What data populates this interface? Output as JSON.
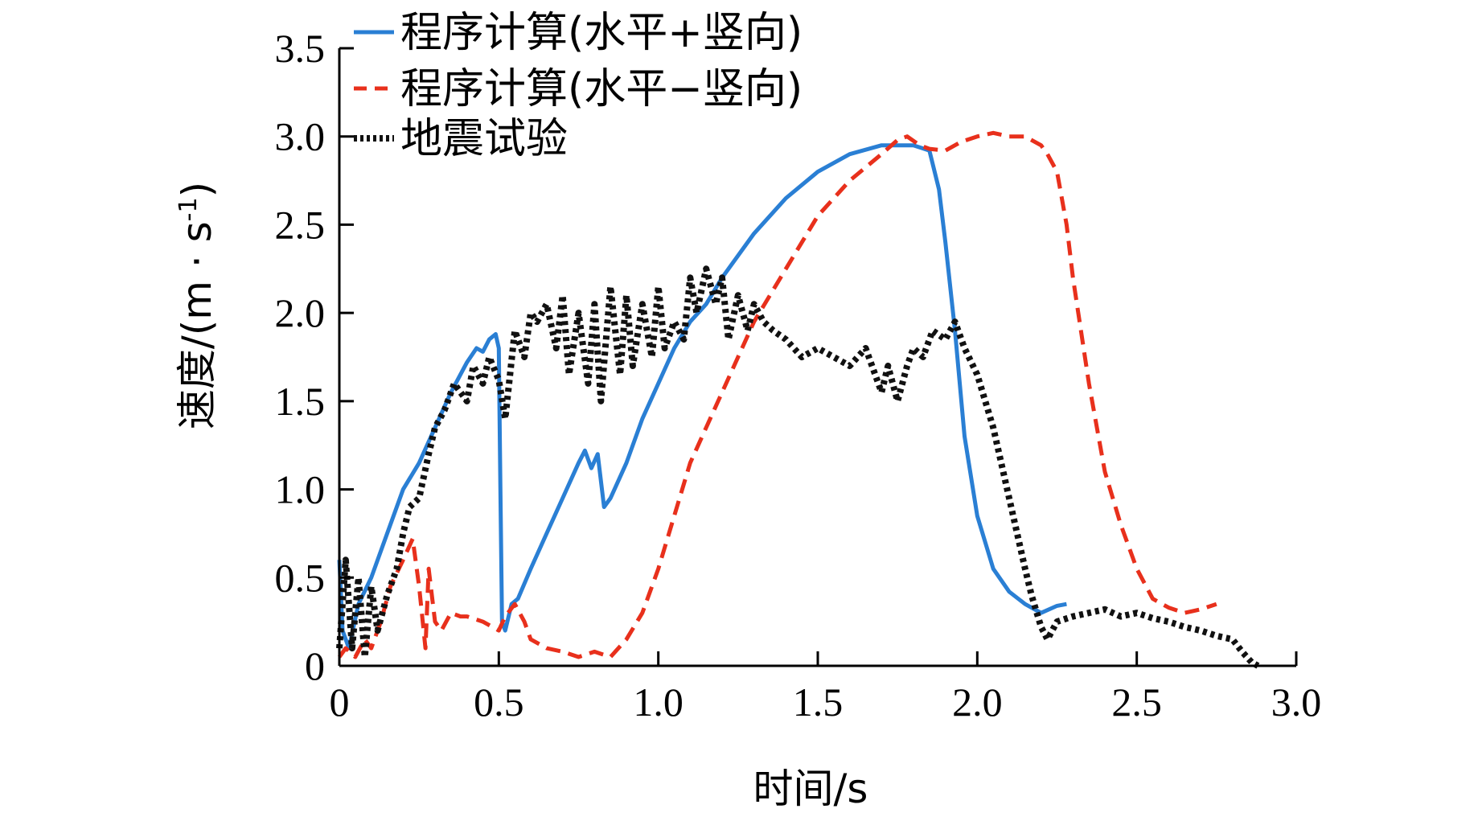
{
  "chart_data": {
    "type": "line",
    "xlabel": "时间/s",
    "ylabel": "速度/(m · s",
    "ylabel_superscript": "-1",
    "ylabel_suffix": ")",
    "xlim": [
      0,
      3.0
    ],
    "ylim": [
      0,
      3.5
    ],
    "xticks": [
      0,
      0.5,
      1.0,
      1.5,
      2.0,
      2.5,
      3.0
    ],
    "xtick_labels": [
      "0",
      "0.5",
      "1.0",
      "1.5",
      "2.0",
      "2.5",
      "3.0"
    ],
    "yticks": [
      0,
      0.5,
      1.0,
      1.5,
      2.0,
      2.5,
      3.0,
      3.5
    ],
    "ytick_labels": [
      "0",
      "0.5",
      "1.0",
      "1.5",
      "2.0",
      "2.5",
      "3.0",
      "3.5"
    ],
    "legend_position": "top-left",
    "series": [
      {
        "name": "程序计算(水平+竖向)",
        "color": "#2a7fd4",
        "style": "solid",
        "x": [
          0,
          0.01,
          0.03,
          0.06,
          0.1,
          0.15,
          0.2,
          0.25,
          0.3,
          0.35,
          0.4,
          0.43,
          0.45,
          0.47,
          0.49,
          0.5,
          0.505,
          0.51,
          0.52,
          0.54,
          0.56,
          0.6,
          0.65,
          0.7,
          0.75,
          0.77,
          0.79,
          0.81,
          0.83,
          0.85,
          0.9,
          0.95,
          1.0,
          1.05,
          1.1,
          1.15,
          1.2,
          1.3,
          1.4,
          1.5,
          1.6,
          1.7,
          1.8,
          1.85,
          1.88,
          1.9,
          1.93,
          1.96,
          2.0,
          2.05,
          2.1,
          2.15,
          2.18,
          2.2,
          2.25,
          2.28
        ],
        "y": [
          0.6,
          0.2,
          0.1,
          0.35,
          0.5,
          0.75,
          1.0,
          1.15,
          1.35,
          1.55,
          1.72,
          1.8,
          1.78,
          1.85,
          1.88,
          1.8,
          1.0,
          0.25,
          0.2,
          0.35,
          0.38,
          0.55,
          0.75,
          0.95,
          1.15,
          1.22,
          1.12,
          1.2,
          0.9,
          0.95,
          1.15,
          1.4,
          1.6,
          1.8,
          1.95,
          2.05,
          2.2,
          2.45,
          2.65,
          2.8,
          2.9,
          2.95,
          2.95,
          2.92,
          2.7,
          2.4,
          1.9,
          1.3,
          0.85,
          0.55,
          0.42,
          0.35,
          0.32,
          0.3,
          0.34,
          0.35
        ]
      },
      {
        "name": "程序计算(水平−竖向)",
        "color": "#e8301c",
        "style": "dashed",
        "x": [
          0,
          0.02,
          0.05,
          0.08,
          0.1,
          0.13,
          0.16,
          0.2,
          0.23,
          0.25,
          0.27,
          0.28,
          0.3,
          0.32,
          0.35,
          0.38,
          0.4,
          0.45,
          0.5,
          0.52,
          0.55,
          0.58,
          0.6,
          0.65,
          0.7,
          0.75,
          0.8,
          0.85,
          0.9,
          0.95,
          1.0,
          1.05,
          1.1,
          1.2,
          1.3,
          1.4,
          1.5,
          1.6,
          1.7,
          1.75,
          1.78,
          1.82,
          1.85,
          1.9,
          1.95,
          2.0,
          2.05,
          2.1,
          2.15,
          2.2,
          2.22,
          2.25,
          2.28,
          2.3,
          2.35,
          2.4,
          2.45,
          2.5,
          2.55,
          2.6,
          2.65,
          2.7,
          2.75
        ],
        "y": [
          0.05,
          0.1,
          0.05,
          0.15,
          0.1,
          0.25,
          0.45,
          0.6,
          0.72,
          0.45,
          0.1,
          0.55,
          0.25,
          0.2,
          0.3,
          0.28,
          0.28,
          0.25,
          0.2,
          0.28,
          0.35,
          0.25,
          0.15,
          0.1,
          0.08,
          0.05,
          0.08,
          0.05,
          0.15,
          0.3,
          0.55,
          0.85,
          1.15,
          1.55,
          1.95,
          2.25,
          2.55,
          2.75,
          2.9,
          2.98,
          3.0,
          2.95,
          2.93,
          2.92,
          2.97,
          3.0,
          3.02,
          3.0,
          3.0,
          2.95,
          2.9,
          2.8,
          2.5,
          2.2,
          1.6,
          1.1,
          0.8,
          0.55,
          0.38,
          0.33,
          0.3,
          0.32,
          0.35
        ]
      },
      {
        "name": "地震试验",
        "color": "#111111",
        "style": "dotted",
        "x": [
          0,
          0.02,
          0.04,
          0.06,
          0.08,
          0.1,
          0.12,
          0.15,
          0.18,
          0.2,
          0.22,
          0.25,
          0.28,
          0.3,
          0.33,
          0.36,
          0.4,
          0.42,
          0.45,
          0.47,
          0.5,
          0.52,
          0.55,
          0.58,
          0.6,
          0.62,
          0.65,
          0.68,
          0.7,
          0.72,
          0.75,
          0.78,
          0.8,
          0.82,
          0.85,
          0.88,
          0.9,
          0.92,
          0.95,
          0.98,
          1.0,
          1.02,
          1.05,
          1.08,
          1.1,
          1.12,
          1.15,
          1.18,
          1.2,
          1.22,
          1.25,
          1.28,
          1.3,
          1.33,
          1.36,
          1.4,
          1.45,
          1.5,
          1.55,
          1.6,
          1.65,
          1.7,
          1.72,
          1.75,
          1.78,
          1.8,
          1.83,
          1.86,
          1.9,
          1.93,
          1.96,
          2.0,
          2.05,
          2.1,
          2.15,
          2.17,
          2.2,
          2.22,
          2.25,
          2.3,
          2.35,
          2.4,
          2.45,
          2.5,
          2.55,
          2.6,
          2.65,
          2.7,
          2.75,
          2.8,
          2.83,
          2.86,
          2.88
        ],
        "y": [
          0.1,
          0.6,
          0.1,
          0.5,
          0.05,
          0.45,
          0.2,
          0.4,
          0.55,
          0.75,
          0.9,
          0.95,
          1.2,
          1.35,
          1.45,
          1.6,
          1.5,
          1.7,
          1.6,
          1.75,
          1.62,
          1.4,
          1.9,
          1.75,
          2.0,
          1.95,
          2.05,
          1.8,
          2.1,
          1.65,
          2.0,
          1.6,
          2.05,
          1.5,
          2.15,
          1.65,
          2.1,
          1.7,
          2.05,
          1.75,
          2.15,
          1.8,
          1.95,
          1.85,
          2.2,
          2.0,
          2.25,
          2.05,
          2.2,
          1.85,
          2.1,
          1.9,
          2.05,
          1.95,
          1.9,
          1.85,
          1.75,
          1.8,
          1.75,
          1.7,
          1.8,
          1.55,
          1.7,
          1.5,
          1.7,
          1.8,
          1.75,
          1.9,
          1.85,
          1.95,
          1.8,
          1.65,
          1.35,
          0.95,
          0.55,
          0.4,
          0.22,
          0.15,
          0.25,
          0.28,
          0.3,
          0.32,
          0.28,
          0.3,
          0.27,
          0.25,
          0.22,
          0.2,
          0.17,
          0.15,
          0.08,
          0.02,
          0.0
        ]
      }
    ]
  }
}
